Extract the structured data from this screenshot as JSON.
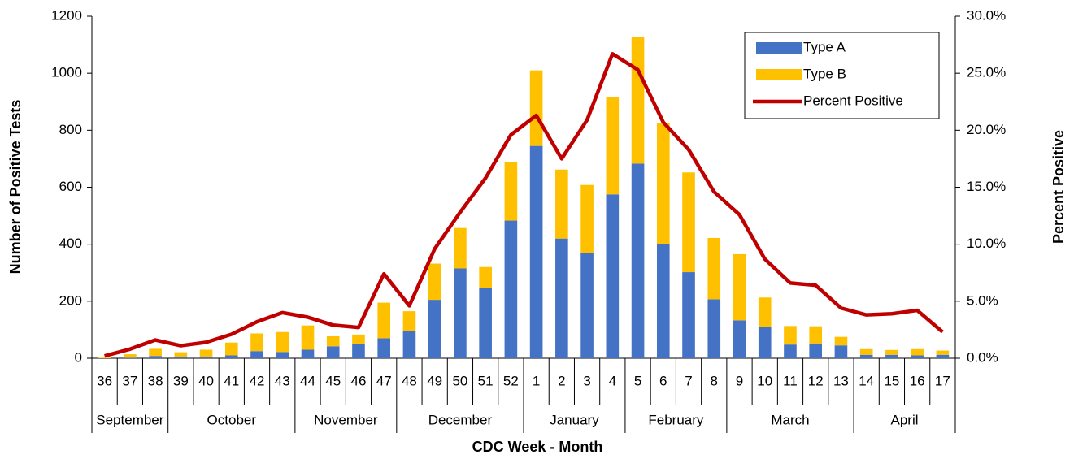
{
  "chart_data": {
    "type": "bar",
    "stacked": true,
    "x_title": "CDC Week - Month",
    "y_title": "Number of Positive Tests",
    "y2_title": "Percent Positive",
    "categories": [
      "36",
      "37",
      "38",
      "39",
      "40",
      "41",
      "42",
      "43",
      "44",
      "45",
      "46",
      "47",
      "48",
      "49",
      "50",
      "51",
      "52",
      "1",
      "2",
      "3",
      "4",
      "5",
      "6",
      "7",
      "8",
      "9",
      "10",
      "11",
      "12",
      "13",
      "14",
      "15",
      "16",
      "17"
    ],
    "month_categories": [
      "September",
      null,
      null,
      "October",
      null,
      null,
      null,
      null,
      "November",
      null,
      null,
      null,
      "December",
      null,
      null,
      null,
      null,
      "January",
      null,
      null,
      null,
      "February",
      null,
      null,
      null,
      "March",
      null,
      null,
      null,
      null,
      "April",
      null,
      null,
      null
    ],
    "series": [
      {
        "name": "Type A",
        "type": "bar",
        "color": "#4472c4",
        "values": [
          0,
          2,
          8,
          3,
          5,
          10,
          25,
          22,
          30,
          42,
          50,
          70,
          95,
          205,
          315,
          248,
          483,
          745,
          420,
          368,
          575,
          683,
          400,
          302,
          207,
          133,
          110,
          48,
          52,
          45,
          12,
          12,
          10,
          12
        ]
      },
      {
        "name": "Type B",
        "type": "bar",
        "color": "#ffc000",
        "values": [
          2,
          12,
          25,
          18,
          25,
          45,
          62,
          70,
          85,
          35,
          33,
          125,
          70,
          127,
          142,
          72,
          205,
          265,
          242,
          240,
          340,
          445,
          425,
          350,
          215,
          232,
          103,
          65,
          60,
          30,
          20,
          17,
          22,
          15
        ]
      },
      {
        "name": "Percent Positive",
        "type": "line",
        "axis": "y2",
        "color": "#c00000",
        "values": [
          0.2,
          0.8,
          1.6,
          1.1,
          1.4,
          2.1,
          3.2,
          4.0,
          3.6,
          2.9,
          2.7,
          7.4,
          4.6,
          9.6,
          12.8,
          15.8,
          19.6,
          21.3,
          17.5,
          20.9,
          26.7,
          25.3,
          20.7,
          18.3,
          14.6,
          12.6,
          8.7,
          6.6,
          6.4,
          4.4,
          3.8,
          3.9,
          4.2,
          2.3
        ]
      }
    ],
    "ylim": [
      0,
      1200
    ],
    "yticks": [
      0,
      200,
      400,
      600,
      800,
      1000,
      1200
    ],
    "y2lim": [
      0,
      30
    ],
    "y2ticks": [
      {
        "value": 0,
        "label": "0.0%"
      },
      {
        "value": 5,
        "label": "5.0%"
      },
      {
        "value": 10,
        "label": "10.0%"
      },
      {
        "value": 15,
        "label": "15.0%"
      },
      {
        "value": 20,
        "label": "20.0%"
      },
      {
        "value": 25,
        "label": "25.0%"
      },
      {
        "value": 30,
        "label": "30.0%"
      }
    ],
    "legend": "top-right"
  }
}
